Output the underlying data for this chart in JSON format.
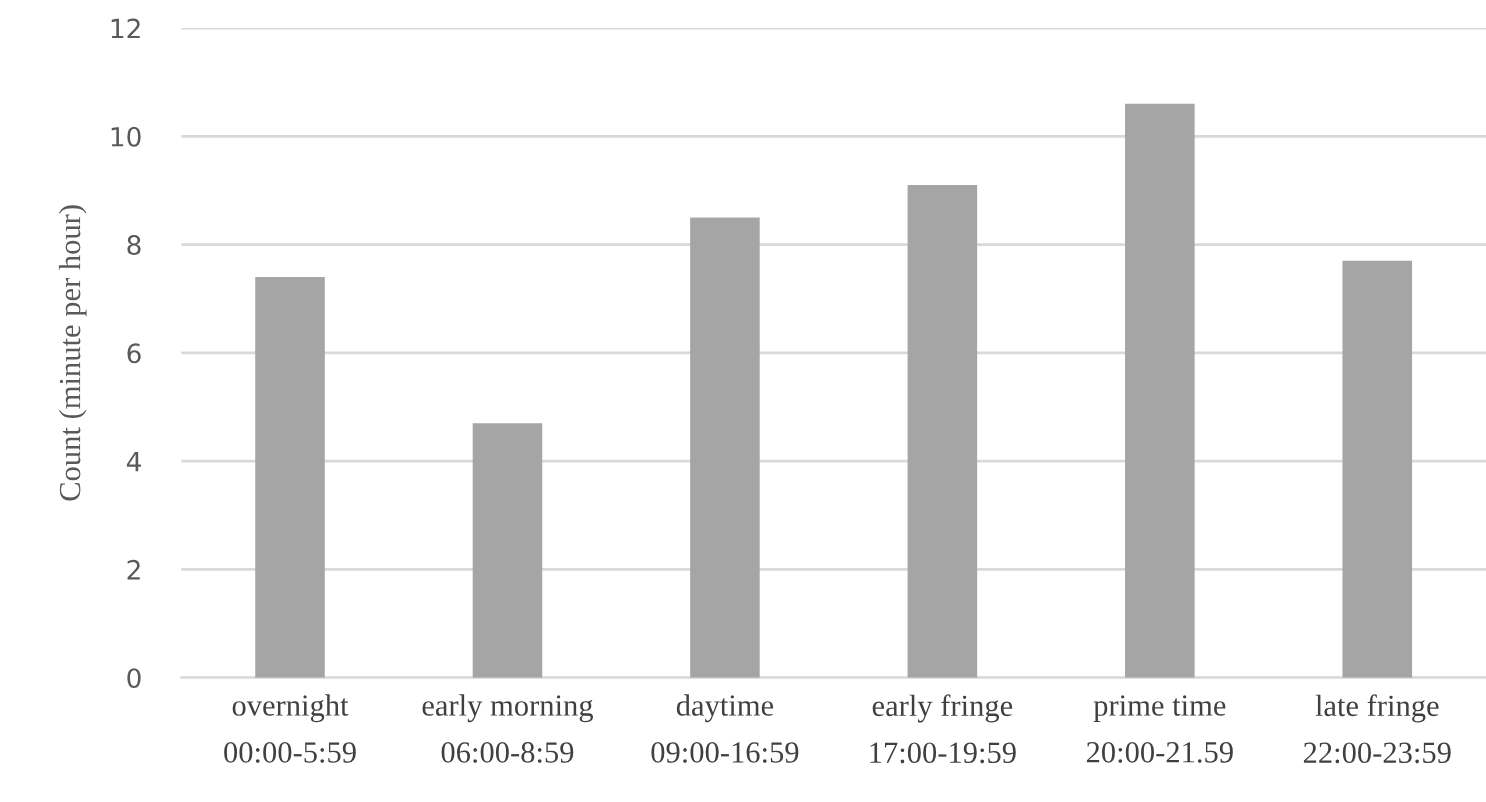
{
  "chart_data": {
    "type": "bar",
    "ylabel": "Count (minute per hour)",
    "categories": [
      "overnight\n00:00-5:59",
      "early morning\n06:00-8:59",
      "daytime\n09:00-16:59",
      "early fringe\n17:00-19:59",
      "prime time\n20:00-21.59",
      "late fringe\n22:00-23:59"
    ],
    "values": [
      7.4,
      4.7,
      8.5,
      9.1,
      10.6,
      7.7
    ],
    "color": "#a5a5a5",
    "ylim": [
      0,
      12
    ],
    "yticks": [
      0,
      2,
      4,
      6,
      8,
      10,
      12
    ],
    "grid": "y",
    "legend": false
  }
}
